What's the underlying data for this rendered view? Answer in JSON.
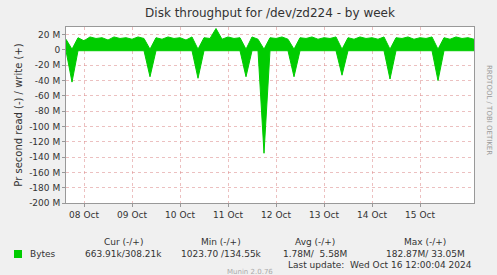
{
  "chart_data": {
    "type": "area",
    "title": "Disk throughput for /dev/zd224 - by week",
    "y_label": "Pr second read (-) / write (+)",
    "categories": [
      null,
      null,
      null,
      "08 Oct",
      null,
      null,
      null,
      null,
      null,
      null,
      null,
      "09 Oct",
      null,
      null,
      null,
      null,
      null,
      null,
      null,
      "10 Oct",
      null,
      null,
      null,
      null,
      null,
      null,
      null,
      "11 Oct",
      null,
      null,
      null,
      null,
      null,
      null,
      null,
      "12 Oct",
      null,
      null,
      null,
      null,
      null,
      null,
      null,
      "13 Oct",
      null,
      null,
      null,
      null,
      null,
      null,
      null,
      "14 Oct",
      null,
      null,
      null,
      null,
      null,
      null,
      null,
      "15 Oct",
      null,
      null,
      null,
      null,
      null,
      null,
      null,
      null,
      null
    ],
    "series": [
      {
        "name": "Bytes",
        "color": "#00cc00",
        "values": [
          14,
          1,
          16,
          12,
          17,
          15,
          16,
          13,
          17,
          15,
          16,
          14,
          17,
          15,
          1,
          16,
          14,
          17,
          15,
          16,
          13,
          17,
          1,
          16,
          15,
          28,
          14,
          17,
          15,
          16,
          1,
          17,
          14,
          1,
          16,
          15,
          17,
          14,
          1,
          16,
          15,
          17,
          14,
          16,
          15,
          17,
          1,
          16,
          14,
          17,
          15,
          16,
          14,
          17,
          1,
          16,
          15,
          17,
          14,
          16,
          15,
          17,
          1,
          16,
          14,
          17,
          15,
          16,
          14
        ],
        "negative_values": [
          -1,
          -42,
          -1,
          -1,
          -1,
          -1,
          -1,
          -1,
          -1,
          -1,
          -1,
          -1,
          -1,
          -1,
          -35,
          -1,
          -1,
          -1,
          -1,
          -1,
          -1,
          -1,
          -37,
          -1,
          -1,
          -1,
          -1,
          -1,
          -1,
          -1,
          -35,
          -1,
          -1,
          -135,
          -1,
          -1,
          -1,
          -1,
          -35,
          -1,
          -1,
          -1,
          -1,
          -1,
          -1,
          -1,
          -33,
          -1,
          -1,
          -1,
          -1,
          -1,
          -1,
          -1,
          -38,
          -1,
          -1,
          -1,
          -1,
          -1,
          -1,
          -1,
          -40,
          -1,
          -1,
          -1,
          -1,
          -1,
          -1
        ]
      }
    ],
    "ylim": [
      -200,
      30
    ],
    "yticks": [
      {
        "value": 20,
        "label": "20 M"
      },
      0,
      {
        "value": -20,
        "label": "-20 M"
      },
      {
        "value": -40,
        "label": "-40 M"
      },
      {
        "value": -60,
        "label": "-60 M"
      },
      {
        "value": -80,
        "label": "-80 M"
      },
      {
        "value": -100,
        "label": "-100 M"
      },
      {
        "value": -120,
        "label": "-120 M"
      },
      {
        "value": -140,
        "label": "-140 M"
      },
      {
        "value": -160,
        "label": "-160 M"
      },
      {
        "value": -180,
        "label": "-180 M"
      },
      {
        "value": -200,
        "label": "-200 M"
      }
    ],
    "grid": true,
    "summary": {
      "headers": [
        "Cur (-/+)",
        "Min (-/+)",
        "Avg (-/+)",
        "Max (-/+)"
      ],
      "rows": [
        {
          "name": "Bytes",
          "cells": [
            "663.91k/308.21k",
            "1023.70 /134.55k",
            "1.78M/  5.58M",
            "182.87M/ 33.05M"
          ]
        }
      ]
    },
    "footer": "Last update:  Wed Oct 16 12:00:04 2024",
    "credit": "Munin 2.0.76",
    "side_text": "RRDTOOL / TOBI OETIKER"
  }
}
